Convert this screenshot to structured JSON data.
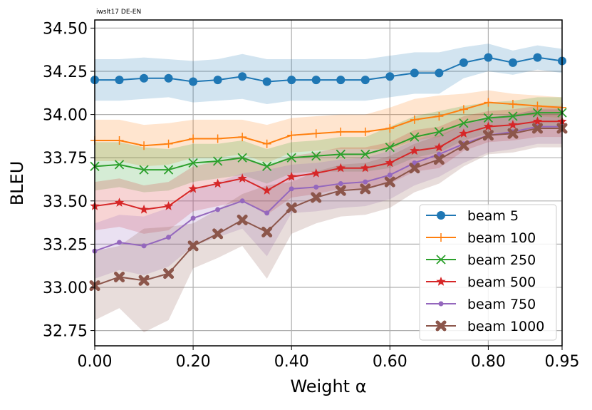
{
  "chart_data": {
    "type": "line",
    "title": "iwslt17 DE-EN",
    "xlabel": "Weight α",
    "ylabel": "BLEU",
    "xlim": [
      0,
      0.95
    ],
    "ylim": [
      32.66,
      34.55
    ],
    "grid": true,
    "legend_position": "bottom-right",
    "x_ticks": [
      "0.00",
      "0.20",
      "0.40",
      "0.60",
      "0.80",
      "0.95"
    ],
    "x_tick_values": [
      0,
      0.2,
      0.4,
      0.6,
      0.8,
      0.95
    ],
    "y_ticks": [
      "32.75",
      "33.00",
      "33.25",
      "33.50",
      "33.75",
      "34.00",
      "34.25",
      "34.50"
    ],
    "y_tick_values": [
      32.75,
      33.0,
      33.25,
      33.5,
      33.75,
      34.0,
      34.25,
      34.5
    ],
    "x": [
      0,
      0.05,
      0.1,
      0.15,
      0.2,
      0.25,
      0.3,
      0.35,
      0.4,
      0.45,
      0.5,
      0.55,
      0.6,
      0.65,
      0.7,
      0.75,
      0.8,
      0.85,
      0.9,
      0.95
    ],
    "series": [
      {
        "name": "beam 5",
        "color": "#1f77b4",
        "marker": "circle",
        "values": [
          34.2,
          34.2,
          34.21,
          34.21,
          34.19,
          34.2,
          34.22,
          34.19,
          34.2,
          34.2,
          34.2,
          34.2,
          34.22,
          34.24,
          34.24,
          34.3,
          34.33,
          34.3,
          34.33,
          34.31
        ],
        "band": [
          0.12,
          0.12,
          0.12,
          0.11,
          0.12,
          0.12,
          0.13,
          0.13,
          0.12,
          0.12,
          0.12,
          0.12,
          0.12,
          0.12,
          0.12,
          0.09,
          0.08,
          0.07,
          0.07,
          0.07
        ]
      },
      {
        "name": "beam 100",
        "color": "#ff7f0e",
        "marker": "plus",
        "values": [
          33.85,
          33.85,
          33.82,
          33.83,
          33.86,
          33.86,
          33.87,
          33.83,
          33.88,
          33.89,
          33.9,
          33.9,
          33.92,
          33.97,
          33.99,
          34.03,
          34.07,
          34.06,
          34.05,
          34.04
        ],
        "band": [
          0.12,
          0.12,
          0.12,
          0.12,
          0.11,
          0.11,
          0.1,
          0.11,
          0.1,
          0.1,
          0.1,
          0.1,
          0.12,
          0.12,
          0.12,
          0.09,
          0.07,
          0.06,
          0.06,
          0.06
        ]
      },
      {
        "name": "beam 250",
        "color": "#2ca02c",
        "marker": "x",
        "values": [
          33.7,
          33.71,
          33.68,
          33.68,
          33.72,
          33.73,
          33.75,
          33.7,
          33.75,
          33.76,
          33.77,
          33.77,
          33.81,
          33.87,
          33.9,
          33.95,
          33.98,
          33.99,
          34.01,
          34.01
        ],
        "band": [
          0.14,
          0.13,
          0.13,
          0.12,
          0.11,
          0.1,
          0.1,
          0.1,
          0.09,
          0.09,
          0.1,
          0.1,
          0.12,
          0.12,
          0.12,
          0.1,
          0.09,
          0.09,
          0.09,
          0.09
        ]
      },
      {
        "name": "beam 500",
        "color": "#d62728",
        "marker": "star",
        "values": [
          33.47,
          33.49,
          33.45,
          33.47,
          33.57,
          33.6,
          33.63,
          33.56,
          33.64,
          33.66,
          33.69,
          33.69,
          33.72,
          33.79,
          33.81,
          33.89,
          33.93,
          33.94,
          33.96,
          33.96
        ],
        "band": [
          0.14,
          0.14,
          0.14,
          0.14,
          0.13,
          0.13,
          0.13,
          0.14,
          0.12,
          0.12,
          0.12,
          0.12,
          0.12,
          0.12,
          0.12,
          0.1,
          0.09,
          0.09,
          0.09,
          0.09
        ]
      },
      {
        "name": "beam 750",
        "color": "#9467bd",
        "marker": "dot",
        "values": [
          33.21,
          33.26,
          33.24,
          33.29,
          33.4,
          33.45,
          33.5,
          33.43,
          33.57,
          33.58,
          33.6,
          33.61,
          33.65,
          33.72,
          33.77,
          33.83,
          33.88,
          33.9,
          33.93,
          33.93
        ],
        "band": [
          0.16,
          0.16,
          0.17,
          0.17,
          0.16,
          0.16,
          0.16,
          0.25,
          0.14,
          0.14,
          0.14,
          0.14,
          0.14,
          0.13,
          0.13,
          0.11,
          0.1,
          0.1,
          0.1,
          0.1
        ]
      },
      {
        "name": "beam 1000",
        "color": "#8c564b",
        "marker": "X",
        "values": [
          33.01,
          33.06,
          33.04,
          33.08,
          33.24,
          33.31,
          33.39,
          33.32,
          33.46,
          33.52,
          33.56,
          33.57,
          33.61,
          33.69,
          33.74,
          33.82,
          33.88,
          33.89,
          33.92,
          33.92
        ],
        "band": [
          0.2,
          0.18,
          0.3,
          0.27,
          0.13,
          0.14,
          0.15,
          0.27,
          0.15,
          0.15,
          0.15,
          0.15,
          0.15,
          0.14,
          0.14,
          0.12,
          0.11,
          0.11,
          0.11,
          0.11
        ]
      }
    ]
  }
}
